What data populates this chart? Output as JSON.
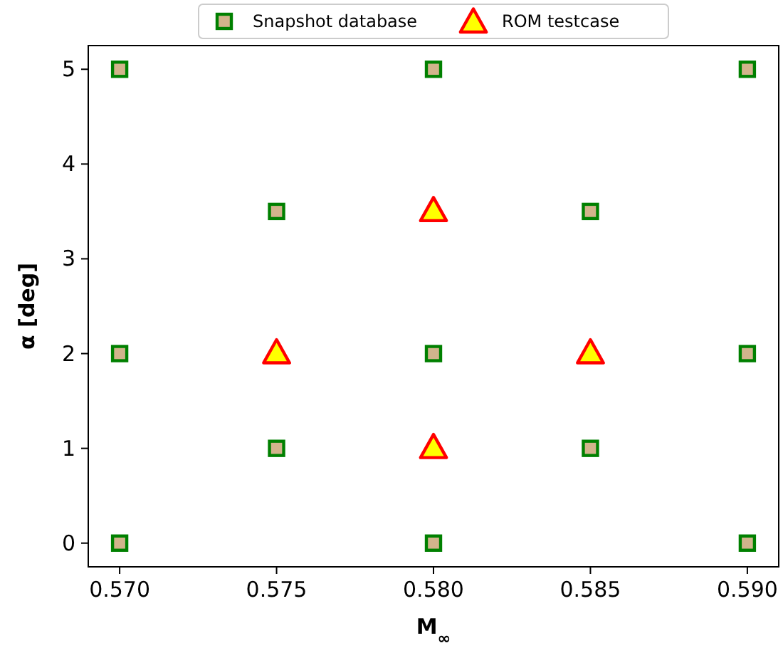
{
  "chart_data": {
    "type": "scatter",
    "xlabel": "M$_{∞}$",
    "ylabel": "α [deg]",
    "xlim": [
      0.569,
      0.591
    ],
    "ylim": [
      -0.25,
      5.25
    ],
    "xticks": [
      {
        "value": 0.57,
        "label": "0.570"
      },
      {
        "value": 0.575,
        "label": "0.575"
      },
      {
        "value": 0.58,
        "label": "0.580"
      },
      {
        "value": 0.585,
        "label": "0.585"
      },
      {
        "value": 0.59,
        "label": "0.590"
      }
    ],
    "yticks": [
      0,
      1,
      2,
      3,
      4,
      5
    ],
    "grid": false,
    "legend": "top",
    "series": [
      {
        "name": "Snapshot database",
        "color": "#008000",
        "marker": "square",
        "x": [
          0.57,
          0.57,
          0.57,
          0.575,
          0.575,
          0.58,
          0.58,
          0.58,
          0.585,
          0.585,
          0.59,
          0.59,
          0.59
        ],
        "values": [
          0,
          2,
          5,
          1,
          3.5,
          0,
          2,
          5,
          1,
          3.5,
          0,
          2,
          5
        ]
      },
      {
        "name": "ROM testcase",
        "color": "#ff0000",
        "marker": "triangle",
        "x": [
          0.575,
          0.58,
          0.58,
          0.585
        ],
        "values": [
          2,
          3.5,
          1,
          2
        ]
      }
    ]
  }
}
